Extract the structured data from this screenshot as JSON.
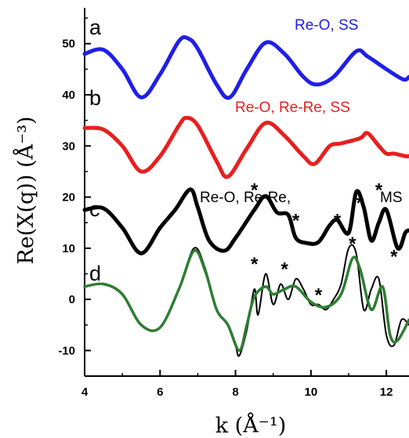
{
  "chart_data": {
    "type": "line",
    "xlabel": "k (Å⁻¹)",
    "ylabel": "Re(X(q)) (Å⁻³)",
    "xlim": [
      4,
      12.6
    ],
    "ylim": [
      -15,
      57
    ],
    "xticks": [
      "4",
      "6",
      "8",
      "10",
      "12"
    ],
    "yticks": [
      "-10",
      "0",
      "10",
      "20",
      "30",
      "40",
      "50"
    ],
    "panel_labels": [
      "a",
      "b",
      "c",
      "d"
    ],
    "annotations": [
      {
        "text": "Re-O, SS",
        "color": "#1f1fe8"
      },
      {
        "text": "Re-O, Re-Re, SS",
        "color": "#e81f1f"
      },
      {
        "text": "Re-O, Re-Re,",
        "color": "#000000"
      },
      {
        "text": "MS",
        "color": "#000000"
      }
    ],
    "series": [
      {
        "color": "#1f1fe8",
        "x": [
          4.0,
          4.5,
          5.0,
          5.5,
          6.0,
          6.5,
          6.75,
          7.0,
          7.5,
          7.85,
          8.3,
          8.8,
          9.3,
          9.8,
          10.15,
          10.6,
          11.2,
          11.5,
          12.0,
          12.45,
          12.6
        ],
        "y": [
          48,
          48.8,
          45,
          39.5,
          44,
          50.5,
          51,
          49,
          42,
          39.5,
          45,
          50.2,
          48,
          43.5,
          42,
          43.5,
          48.5,
          47.5,
          45,
          43,
          43.5
        ]
      },
      {
        "color": "#e81f1f",
        "x": [
          4.0,
          4.5,
          5.0,
          5.5,
          6.0,
          6.5,
          6.7,
          7.0,
          7.5,
          7.8,
          8.3,
          8.8,
          9.3,
          9.8,
          10.1,
          10.5,
          10.8,
          11.3,
          11.5,
          11.8,
          12.0,
          12.2,
          12.5,
          12.6
        ],
        "y": [
          33.5,
          33.2,
          30,
          25,
          28,
          34,
          35.5,
          34,
          27,
          24,
          29.5,
          34.5,
          32,
          28,
          26.5,
          30,
          30.5,
          31.5,
          32.5,
          30,
          28.5,
          28.5,
          28,
          28
        ]
      },
      {
        "color": "#000000",
        "x": [
          4.0,
          4.5,
          5.0,
          5.5,
          6.0,
          6.4,
          6.8,
          7.0,
          7.3,
          7.7,
          8.0,
          8.5,
          8.8,
          9.1,
          9.4,
          9.6,
          9.9,
          10.2,
          10.5,
          10.7,
          11.0,
          11.2,
          11.4,
          11.6,
          11.8,
          12.0,
          12.3,
          12.5,
          12.6
        ],
        "y": [
          17.5,
          17.8,
          14,
          9,
          14,
          17.5,
          21.5,
          18,
          11.5,
          9.5,
          12,
          17.5,
          20.2,
          17,
          16.5,
          12,
          11,
          11.2,
          14.5,
          15.5,
          13,
          21,
          18,
          11.5,
          15,
          17.5,
          10,
          13,
          13.5
        ]
      },
      {
        "color": "#000000",
        "x": [
          4.0,
          4.5,
          5.0,
          5.5,
          6.0,
          6.5,
          6.9,
          7.2,
          7.5,
          7.8,
          8.0,
          8.1,
          8.3,
          8.5,
          8.6,
          8.8,
          9.0,
          9.2,
          9.4,
          9.6,
          9.8,
          10.0,
          10.2,
          10.4,
          10.6,
          10.8,
          11.0,
          11.2,
          11.4,
          11.6,
          11.8,
          12.0,
          12.2,
          12.4,
          12.6
        ],
        "y": [
          2.5,
          3,
          1,
          -5,
          -5.5,
          2,
          10,
          6,
          -2,
          -5,
          -9,
          -11,
          -6,
          2,
          -3,
          5,
          -1,
          3,
          0,
          4,
          2,
          -1,
          -1,
          -2,
          0,
          3,
          10,
          9,
          -2,
          2,
          4,
          -7,
          -9,
          -4,
          -5
        ]
      },
      {
        "color": "#2e7d32",
        "x": [
          4.0,
          4.5,
          5.0,
          5.5,
          6.0,
          6.5,
          6.9,
          7.2,
          7.5,
          7.8,
          8.1,
          8.3,
          8.5,
          8.8,
          9.0,
          9.3,
          9.6,
          10.0,
          10.4,
          10.8,
          11.1,
          11.3,
          11.6,
          11.9,
          12.1,
          12.3,
          12.6
        ],
        "y": [
          2.5,
          3,
          1,
          -5,
          -5.5,
          2,
          9.5,
          5.5,
          -2,
          -5,
          -10,
          -5,
          0.5,
          2.5,
          1,
          2,
          2.5,
          -0.5,
          -1.5,
          1,
          8,
          6,
          -2,
          2.5,
          -7,
          -8,
          -4
        ]
      }
    ],
    "star_markers": [
      {
        "x": 8.5,
        "y": 22
      },
      {
        "x": 9.6,
        "y": 16
      },
      {
        "x": 10.7,
        "y": 16
      },
      {
        "x": 11.3,
        "y": 19.5
      },
      {
        "x": 11.8,
        "y": 22
      },
      {
        "x": 8.5,
        "y": 7.5
      },
      {
        "x": 9.3,
        "y": 6.5
      },
      {
        "x": 10.2,
        "y": 1.5
      },
      {
        "x": 11.1,
        "y": 11.5
      },
      {
        "x": 12.2,
        "y": 9
      }
    ]
  }
}
